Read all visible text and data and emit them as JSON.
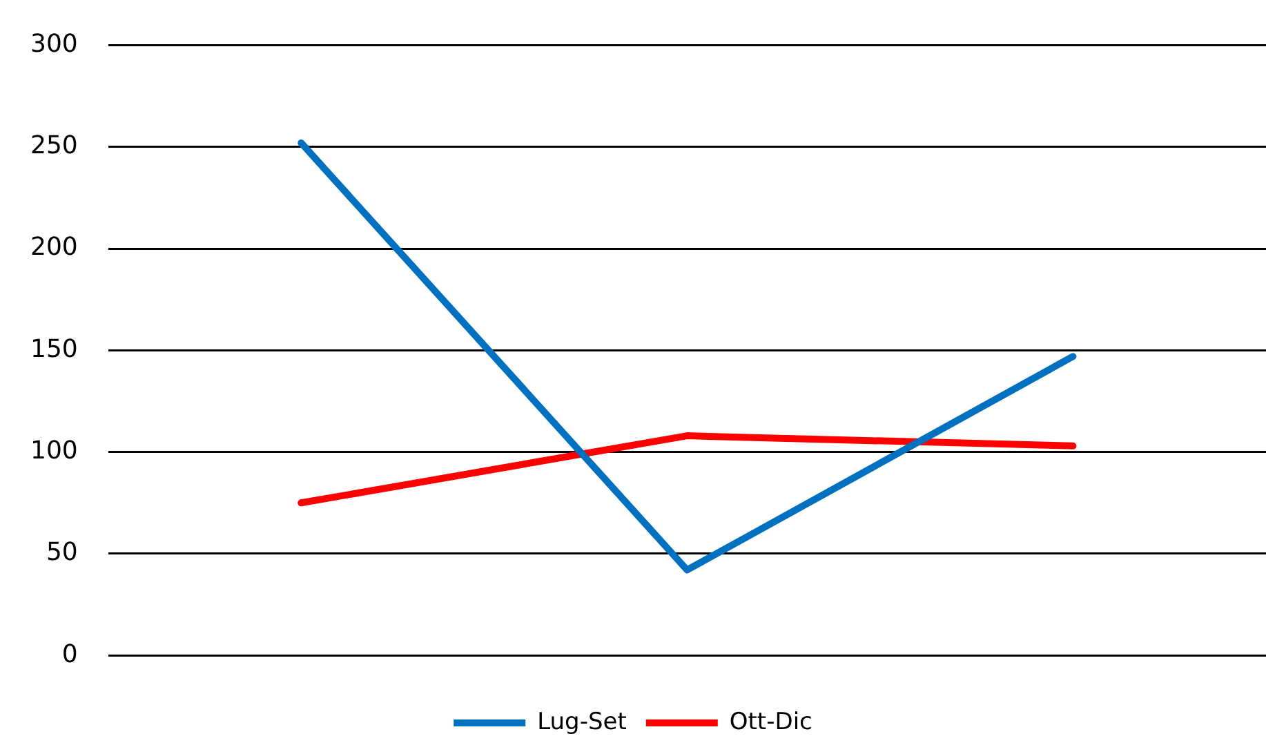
{
  "chart_data": {
    "type": "line",
    "categories": [
      null,
      null,
      null
    ],
    "series": [
      {
        "name": "Lug-Set",
        "color": "#0070c0",
        "values": [
          252,
          42,
          147
        ]
      },
      {
        "name": "Ott-Dic",
        "color": "#ff0000",
        "values": [
          75,
          108,
          103
        ]
      }
    ],
    "ylim": [
      0,
      300
    ],
    "yticks": [
      0,
      50,
      100,
      150,
      200,
      250,
      300
    ],
    "grid": "y",
    "legend": "bottom",
    "marker": "none"
  }
}
